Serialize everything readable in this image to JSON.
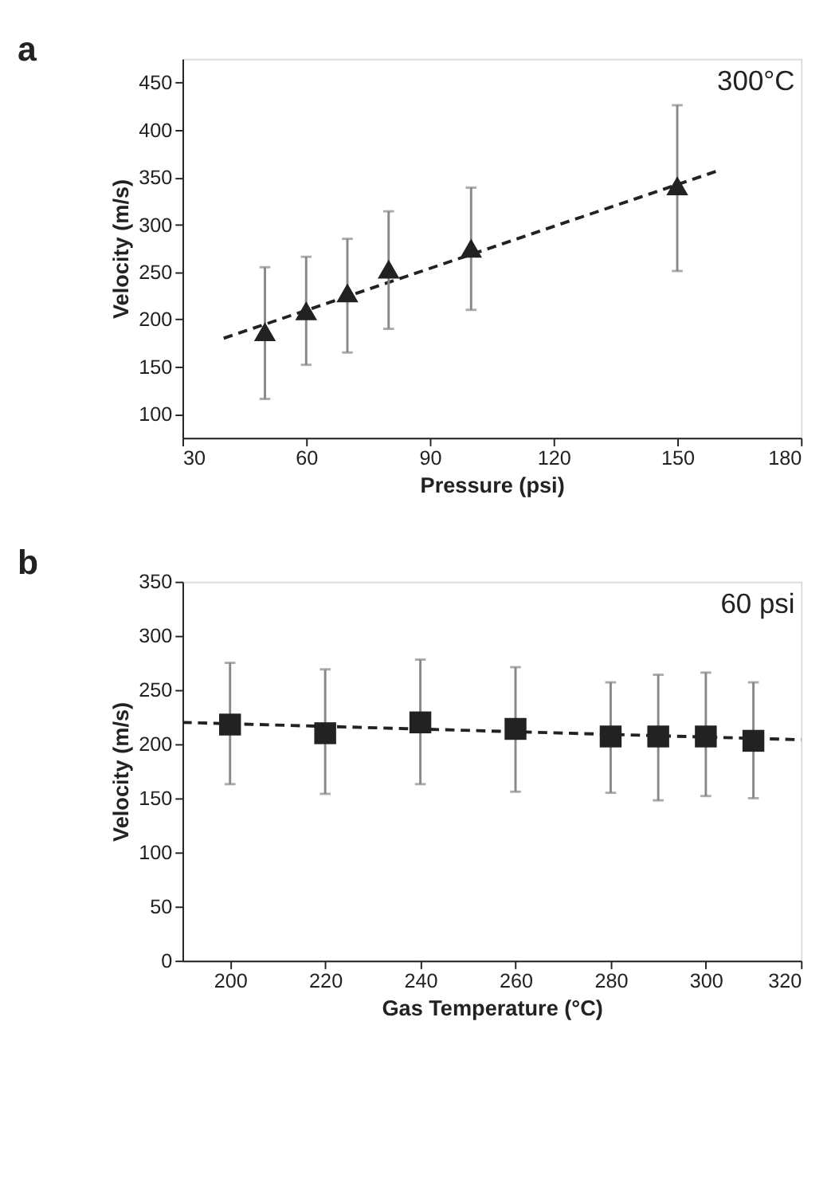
{
  "chart_data": [
    {
      "type": "scatter",
      "title": "a",
      "xlabel": "Pressure (psi)",
      "ylabel": "Velocity (m/s)",
      "annotations": [
        "300°C"
      ],
      "x": [
        50,
        60,
        70,
        80,
        100,
        150
      ],
      "series": [
        {
          "color": "#222222",
          "marker": "triangle",
          "values": [
            187,
            209,
            228,
            253,
            275,
            341
          ],
          "errors": [
            [
              116,
              255
            ],
            [
              152,
              266
            ],
            [
              165,
              285
            ],
            [
              190,
              314
            ],
            [
              210,
              339
            ],
            [
              251,
              426
            ]
          ]
        },
        {
          "type": "line",
          "color": "#222222",
          "marker": "none",
          "line_style": "dashed",
          "x": [
            40,
            160
          ],
          "values": [
            180,
            357
          ]
        }
      ],
      "xlim": [
        30,
        180
      ],
      "xticks": [
        30,
        60,
        90,
        120,
        150,
        180
      ],
      "ylim": [
        75,
        475
      ],
      "yticks": [
        100,
        150,
        200,
        250,
        300,
        350,
        400,
        450
      ],
      "grid": false
    },
    {
      "type": "scatter",
      "title": "b",
      "xlabel": "Gas Temperature (°C)",
      "ylabel": "Velocity (m/s)",
      "annotations": [
        "60 psi"
      ],
      "x": [
        200,
        220,
        240,
        260,
        280,
        290,
        300,
        310
      ],
      "series": [
        {
          "color": "#222222",
          "marker": "square",
          "values": [
            218,
            210,
            220,
            214,
            207,
            207,
            207,
            203
          ],
          "errors": [
            [
              163,
              275
            ],
            [
              154,
              269
            ],
            [
              163,
              278
            ],
            [
              156,
              271
            ],
            [
              155,
              257
            ],
            [
              148,
              264
            ],
            [
              152,
              266
            ],
            [
              150,
              257
            ]
          ]
        },
        {
          "type": "line",
          "color": "#222222",
          "marker": "none",
          "line_style": "dashed",
          "x": [
            190,
            320
          ],
          "values": [
            220,
            204
          ]
        }
      ],
      "xlim": [
        190,
        320
      ],
      "xticks": [
        200,
        220,
        240,
        260,
        280,
        300,
        320
      ],
      "ylim": [
        0,
        350
      ],
      "yticks": [
        0,
        50,
        100,
        150,
        200,
        250,
        300,
        350
      ],
      "grid": false
    }
  ]
}
